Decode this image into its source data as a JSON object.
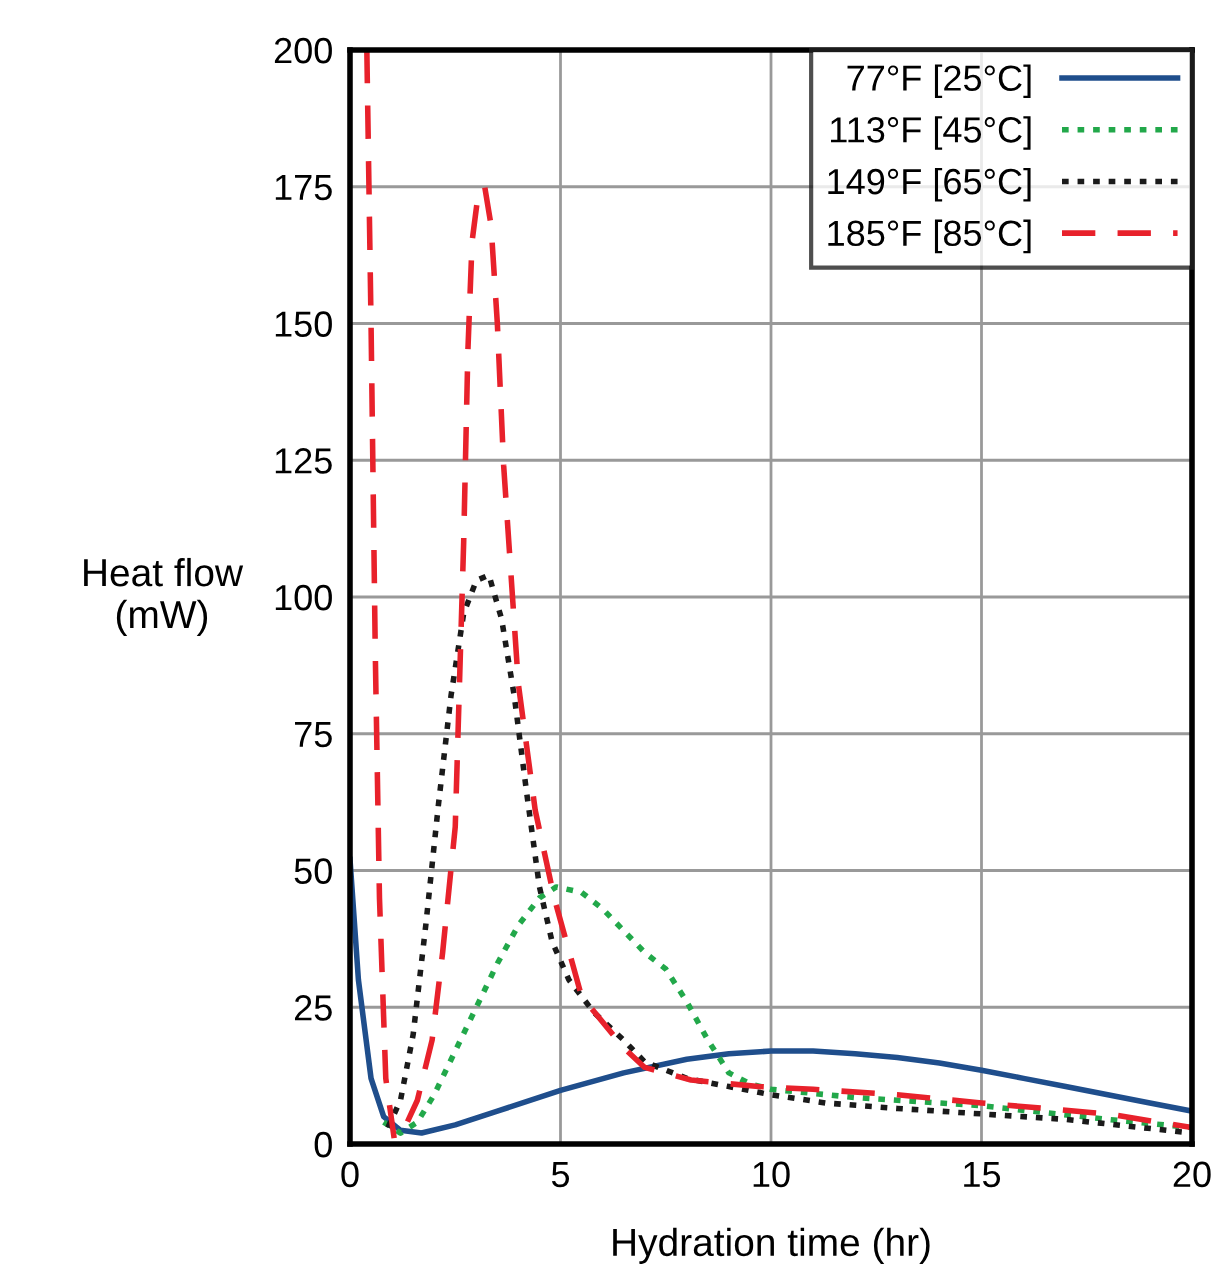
{
  "chart_data": {
    "type": "line",
    "xlabel": "Hydration time (hr)",
    "ylabel": "Heat flow\n(mW)",
    "xlim": [
      0,
      20
    ],
    "xticks": [
      0,
      5,
      10,
      15,
      20
    ],
    "ylim": [
      0,
      200
    ],
    "yticks": [
      0,
      25,
      50,
      75,
      100,
      125,
      150,
      175,
      200
    ],
    "grid": true,
    "legend": "top right",
    "marker": "none",
    "series": [
      {
        "name": "77°F [25°C]",
        "color": "#1f4e8c",
        "line_style": "solid",
        "x": [
          0,
          0.2,
          0.5,
          0.8,
          1.2,
          1.7,
          2.5,
          3.5,
          5,
          6.5,
          8,
          9,
          10,
          11,
          12,
          13,
          14,
          15,
          16,
          17,
          18,
          19,
          20
        ],
        "values": [
          52,
          30,
          12,
          5,
          2.5,
          2,
          3.5,
          6,
          9.8,
          13,
          15.5,
          16.5,
          17,
          17,
          16.5,
          15.8,
          14.8,
          13.5,
          12,
          10.5,
          9,
          7.5,
          6
        ]
      },
      {
        "name": "113°F [45°C]",
        "color": "#22a84a",
        "line_style": "dotted",
        "x": [
          0.8,
          1.2,
          1.6,
          2,
          2.5,
          3,
          3.5,
          4,
          4.5,
          4.9,
          5.5,
          6,
          6.5,
          7,
          7.5,
          8,
          8.5,
          9,
          9.5,
          10,
          12,
          15,
          18,
          20
        ],
        "values": [
          4,
          2,
          4,
          9,
          17,
          25,
          33,
          40,
          45,
          47,
          46,
          43,
          39,
          35,
          32,
          26,
          19,
          13,
          11,
          10,
          8.5,
          7,
          4.5,
          3
        ]
      },
      {
        "name": "149°F [65°C]",
        "color": "#1a1a1a",
        "line_style": "dotted",
        "x": [
          0.9,
          1.2,
          1.5,
          1.8,
          2.1,
          2.4,
          2.7,
          3.0,
          3.3,
          3.6,
          3.9,
          4.2,
          4.5,
          4.8,
          5.2,
          5.8,
          6.5,
          7,
          8,
          9,
          10,
          11.3,
          13,
          15,
          17,
          20
        ],
        "values": [
          3,
          8,
          20,
          40,
          62,
          82,
          97,
          103,
          104,
          96,
          82,
          64,
          47,
          37,
          30,
          24,
          19,
          15,
          12,
          10.5,
          9,
          7.5,
          6.5,
          5.5,
          4.5,
          2
        ]
      },
      {
        "name": "185°F [85°C]",
        "color": "#e8212b",
        "line_style": "dashed",
        "x": [
          0.4,
          0.5,
          0.6,
          0.7,
          0.85,
          1.05,
          1.3,
          1.6,
          1.95,
          2.2,
          2.5,
          2.7,
          2.8,
          2.9,
          3.05,
          3.2,
          3.35,
          3.5,
          3.65,
          4.0,
          4.4,
          4.85,
          5.5,
          6.5,
          7,
          8.1,
          9.7,
          11,
          13,
          15,
          18,
          20
        ],
        "values": [
          200,
          150,
          90,
          45,
          12,
          1,
          3,
          8,
          19,
          35,
          58,
          110,
          145,
          165,
          174,
          175,
          168,
          150,
          124,
          84,
          61,
          45,
          27,
          17.6,
          14,
          11.7,
          10.5,
          10,
          9,
          7.5,
          5.5,
          3
        ]
      }
    ]
  }
}
